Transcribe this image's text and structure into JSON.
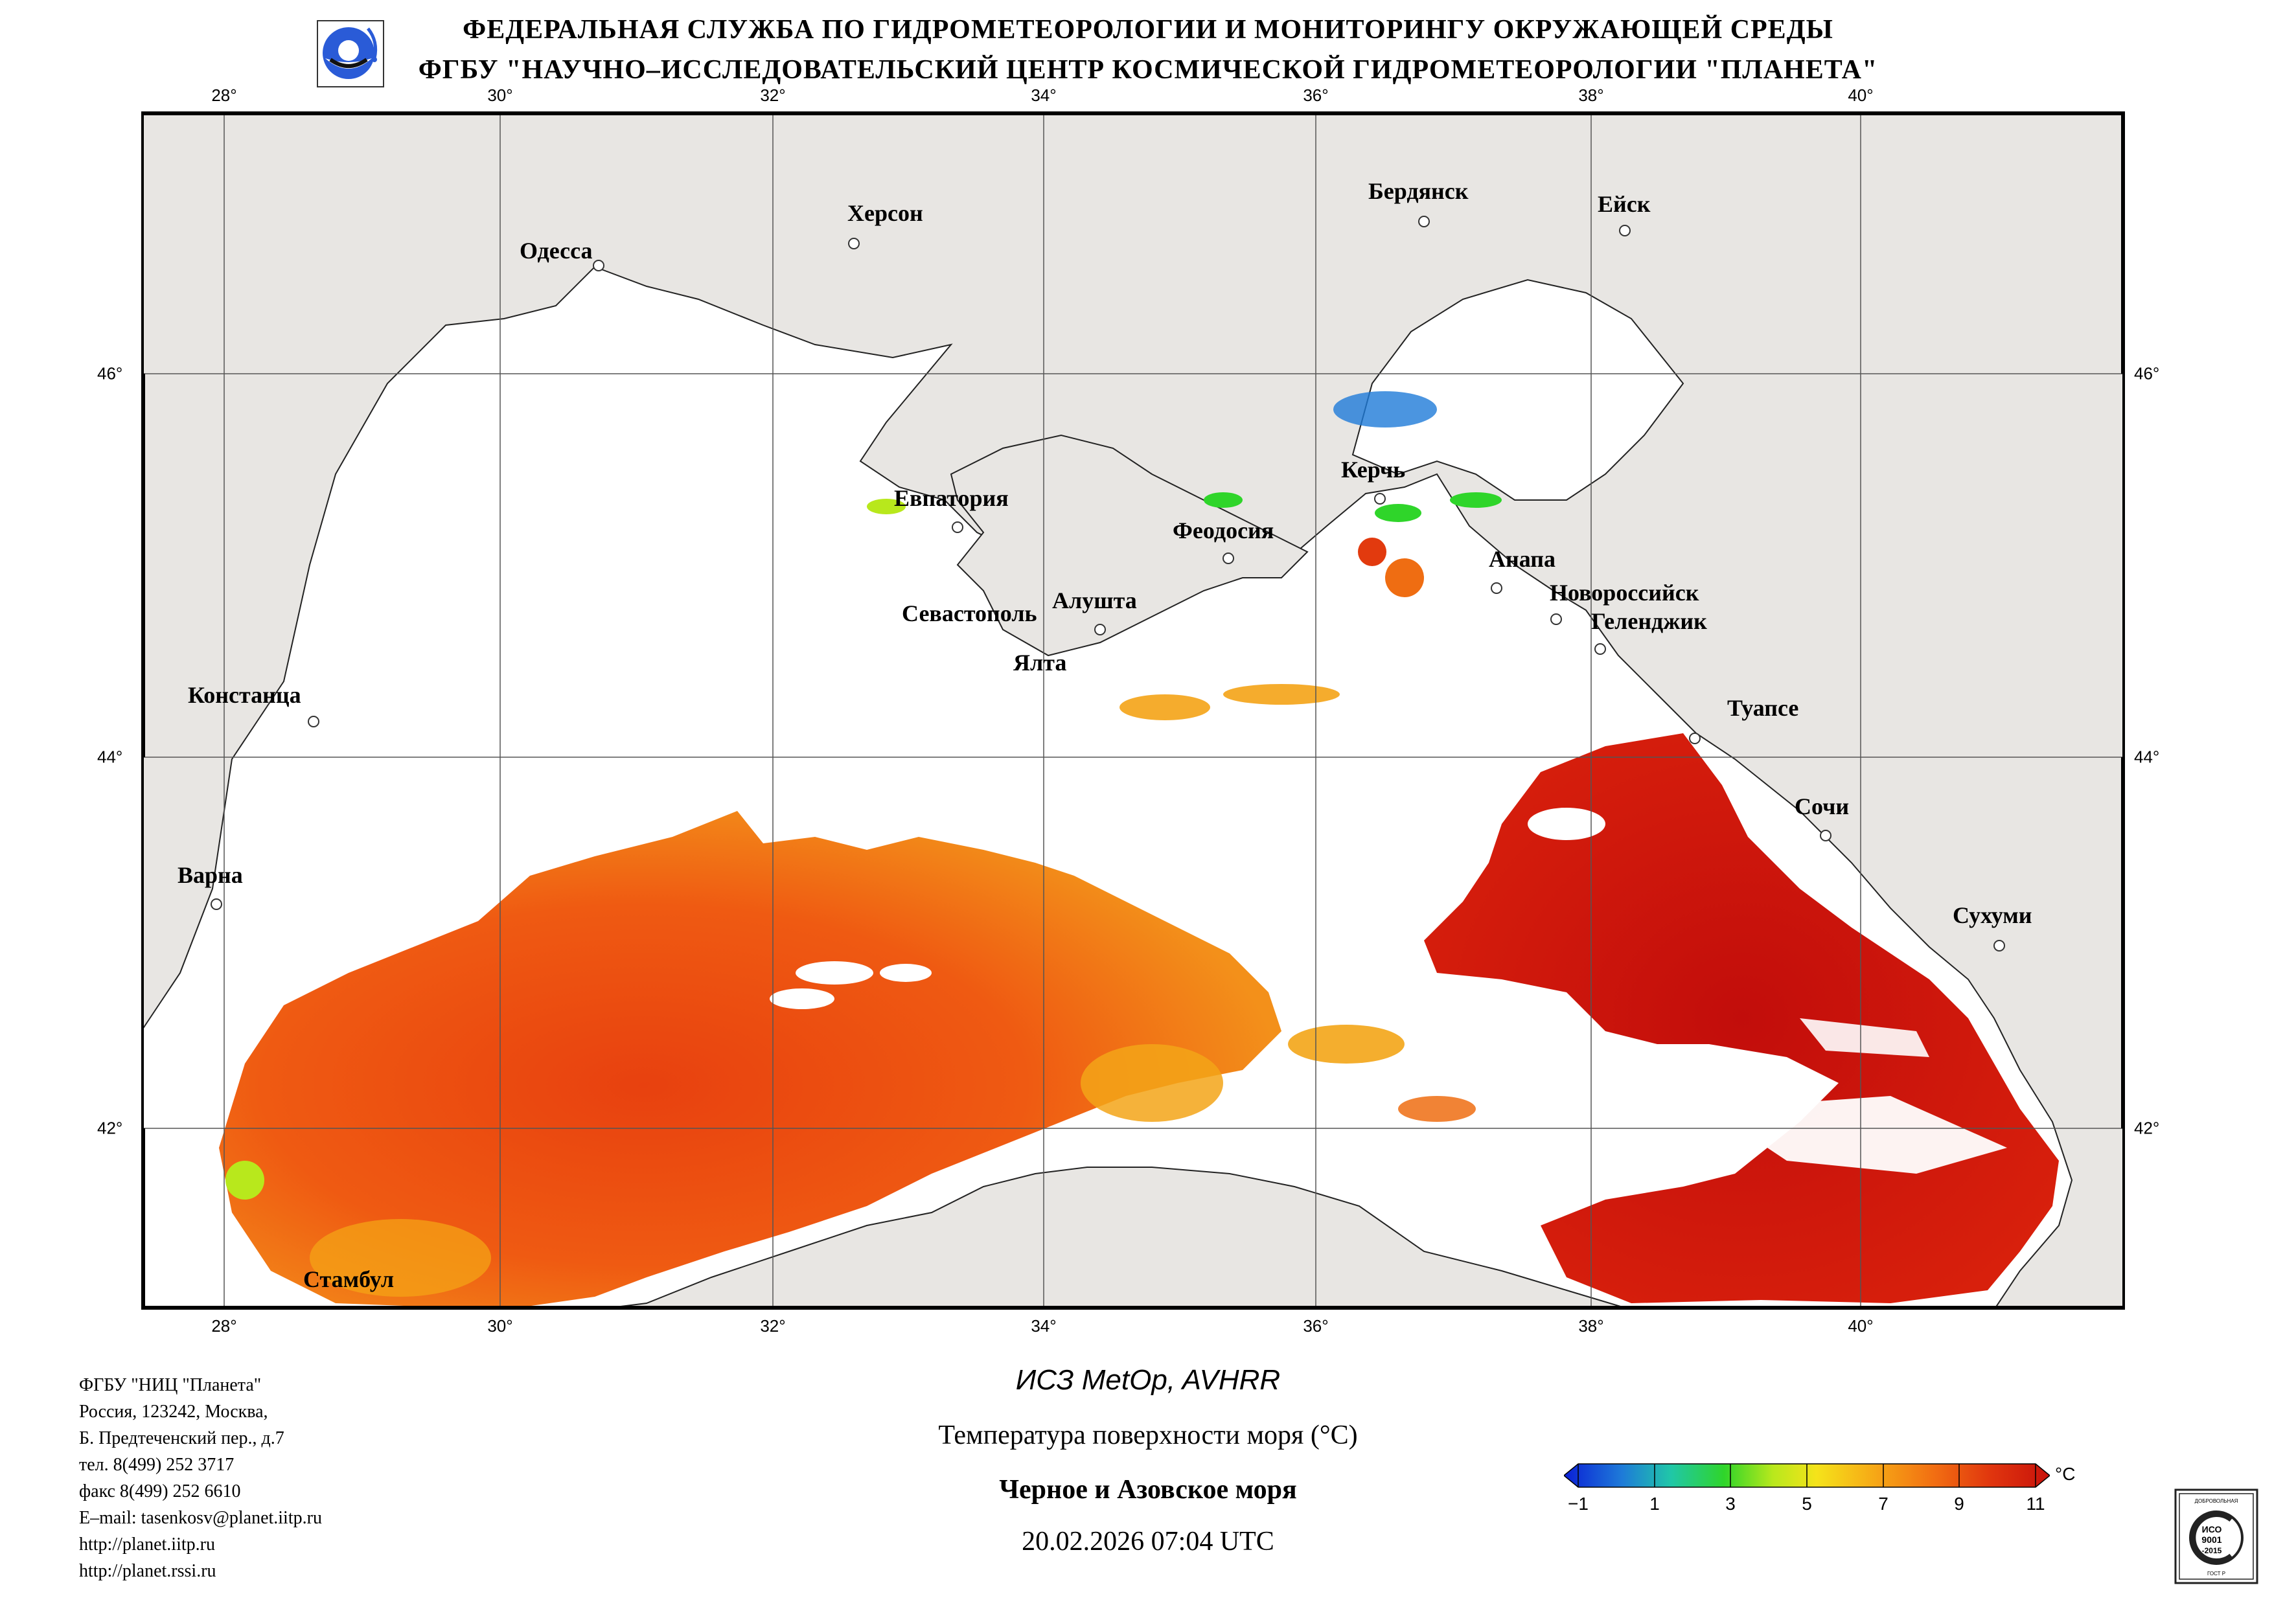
{
  "header": {
    "line1": "ФЕДЕРАЛЬНАЯ СЛУЖБА ПО ГИДРОМЕТЕОРОЛОГИИ И МОНИТОРИНГУ ОКРУЖАЮЩЕЙ СРЕДЫ",
    "line2": "ФГБУ \"НАУЧНО–ИССЛЕДОВАТЕЛЬСКИЙ ЦЕНТР КОСМИЧЕСКОЙ ГИДРОМЕТЕОРОЛОГИИ \"ПЛАНЕТА\""
  },
  "map": {
    "lon_labels": [
      "28°",
      "30°",
      "32°",
      "34°",
      "36°",
      "38°",
      "40°"
    ],
    "lat_labels": [
      "46°",
      "44°",
      "42°"
    ],
    "cities": [
      {
        "name": "Одесса"
      },
      {
        "name": "Херсон"
      },
      {
        "name": "Бердянск"
      },
      {
        "name": "Ейск"
      },
      {
        "name": "Евпатория"
      },
      {
        "name": "Керчь"
      },
      {
        "name": "Феодосия"
      },
      {
        "name": "Анапа"
      },
      {
        "name": "Новороссийск"
      },
      {
        "name": "Геленджик"
      },
      {
        "name": "Севастополь"
      },
      {
        "name": "Алушта"
      },
      {
        "name": "Ялта"
      },
      {
        "name": "Констанца"
      },
      {
        "name": "Туапсе"
      },
      {
        "name": "Сочи"
      },
      {
        "name": "Варна"
      },
      {
        "name": "Сухуми"
      },
      {
        "name": "Стамбул"
      }
    ],
    "colors": {
      "land": "#e8e6e3",
      "sea_cloud": "#ffffff",
      "border": "#000000"
    }
  },
  "footer": {
    "org_lines": [
      "ФГБУ \"НИЦ \"Планета\"",
      "Россия, 123242, Москва,",
      "Б. Предтеченский пер., д.7",
      "тел. 8(499) 252 3717",
      "факс 8(499) 252 6610",
      "E–mail: tasenkosv@planet.iitp.ru",
      "http://planet.iitp.ru",
      "http://planet.rssi.ru"
    ],
    "satellite": "ИСЗ MetOp, AVHRR",
    "product": "Температура поверхности моря (°C)",
    "region": "Черное и Азовское моря",
    "datetime": "20.02.2026 07:04 UTC"
  },
  "colorbar": {
    "unit": "°C",
    "ticks": [
      "−1",
      "1",
      "3",
      "5",
      "7",
      "9",
      "11"
    ],
    "colors": [
      "#0a1fd6",
      "#1e7bd8",
      "#20c7a8",
      "#2fd52a",
      "#b8e81c",
      "#f5e31a",
      "#f6a816",
      "#f26f12",
      "#e0350e",
      "#c8120b"
    ]
  },
  "iso_badge": {
    "top": "ДОБРОВОЛЬНАЯ",
    "center1": "ИСО",
    "center2": "9001",
    "center3": "-2015",
    "bottom": "ГОСТ Р"
  }
}
